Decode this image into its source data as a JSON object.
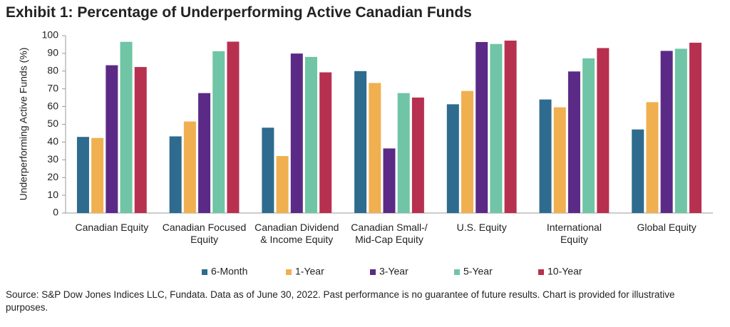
{
  "chart_data": {
    "type": "bar",
    "title": "Exhibit 1: Percentage of Underperforming Active Canadian Funds",
    "y_label": "Underperforming Active Funds (%)",
    "categories": [
      "Canadian Equity",
      "Canadian Focused Equity",
      "Canadian Dividend & Income Equity",
      "Canadian Small-/ Mid-Cap Equity",
      "U.S. Equity",
      "International Equity",
      "Global Equity"
    ],
    "series": [
      {
        "name": "6-Month",
        "color": "#2e6b8e",
        "values": [
          42.9,
          43.2,
          48.1,
          80.0,
          61.3,
          64.0,
          47.1
        ]
      },
      {
        "name": "1-Year",
        "color": "#f0b050",
        "values": [
          42.3,
          51.6,
          32.1,
          73.3,
          68.8,
          59.6,
          62.5
        ]
      },
      {
        "name": "3-Year",
        "color": "#5b2a86",
        "values": [
          83.3,
          67.6,
          89.9,
          36.4,
          96.4,
          79.8,
          91.4
        ]
      },
      {
        "name": "5-Year",
        "color": "#6fc5a5",
        "values": [
          96.5,
          91.2,
          88.0,
          67.6,
          95.3,
          87.2,
          92.6
        ]
      },
      {
        "name": "10-Year",
        "color": "#b8304f",
        "values": [
          82.3,
          96.6,
          79.3,
          65.1,
          97.2,
          93.0,
          96.0
        ]
      }
    ],
    "ylim": [
      0,
      100
    ],
    "yticks": [
      0,
      10,
      20,
      30,
      40,
      50,
      60,
      70,
      80,
      90,
      100
    ],
    "grid": false,
    "legend": "bottom",
    "footnote": "Source: S&P Dow Jones Indices LLC, Fundata.  Data as of June 30, 2022.  Past performance is no guarantee of future results. Chart is provided for illustrative purposes."
  }
}
